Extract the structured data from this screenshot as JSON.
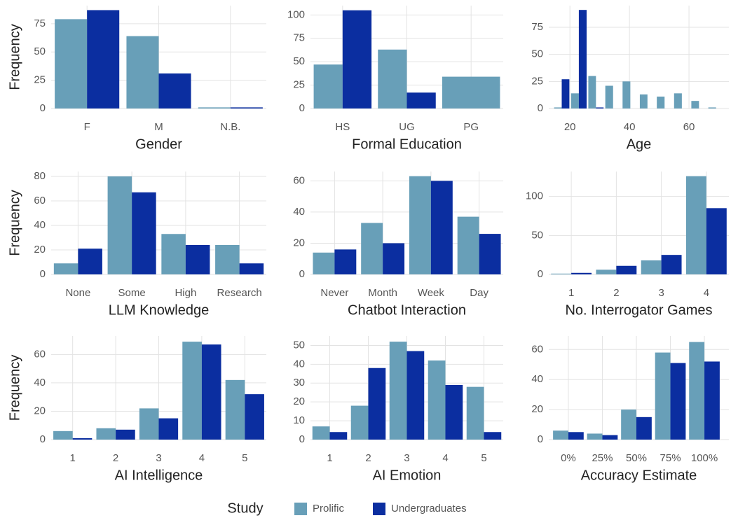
{
  "legend_title": "Study",
  "chart_data": [
    {
      "type": "bar",
      "xlabel": "Gender",
      "ylabel": "Frequency",
      "categories": [
        "F",
        "M",
        "N.B."
      ],
      "series": [
        {
          "name": "Prolific",
          "color": "#689fb8",
          "values": [
            79,
            64,
            1
          ]
        },
        {
          "name": "Undergraduates",
          "color": "#0b2ea0",
          "values": [
            87,
            31,
            1
          ]
        }
      ],
      "ylim": [
        0,
        91
      ],
      "yticks": [
        0,
        25,
        50,
        75
      ],
      "grid": true
    },
    {
      "type": "bar",
      "xlabel": "Formal Education",
      "categories": [
        "HS",
        "UG",
        "PG"
      ],
      "series": [
        {
          "name": "Prolific",
          "color": "#689fb8",
          "values": [
            47,
            63,
            34
          ]
        },
        {
          "name": "Undergraduates",
          "color": "#0b2ea0",
          "values": [
            105,
            17,
            null
          ]
        }
      ],
      "ylim": [
        0,
        110
      ],
      "yticks": [
        0,
        25,
        50,
        75,
        100
      ],
      "grid": true
    },
    {
      "type": "histogram",
      "xlabel": "Age",
      "bins": [
        14.4,
        20.1,
        25.9,
        31.6,
        37.4,
        43.2,
        48.9,
        54.7,
        60.5,
        66.2,
        72.0
      ],
      "series": [
        {
          "name": "Prolific",
          "color": "#689fb8",
          "values": [
            1,
            14,
            30,
            21,
            25,
            13,
            11,
            14,
            7,
            1
          ]
        },
        {
          "name": "Undergraduates",
          "color": "#0b2ea0",
          "values": [
            27,
            91,
            1,
            0,
            0,
            0,
            0,
            0,
            0,
            0
          ]
        }
      ],
      "xlim": [
        12.9,
        73.4
      ],
      "xticks": [
        20,
        40,
        60
      ],
      "ylim": [
        0,
        95
      ],
      "yticks": [
        0,
        25,
        50,
        75
      ],
      "grid": true
    },
    {
      "type": "bar",
      "xlabel": "LLM Knowledge",
      "ylabel": "Frequency",
      "categories": [
        "None",
        "Some",
        "High",
        "Research"
      ],
      "series": [
        {
          "name": "Prolific",
          "color": "#689fb8",
          "values": [
            9,
            80,
            33,
            24
          ]
        },
        {
          "name": "Undergraduates",
          "color": "#0b2ea0",
          "values": [
            21,
            67,
            24,
            9
          ]
        }
      ],
      "ylim": [
        0,
        84
      ],
      "yticks": [
        0,
        20,
        40,
        60,
        80
      ],
      "grid": true
    },
    {
      "type": "bar",
      "xlabel": "Chatbot Interaction",
      "categories": [
        "Never",
        "Month",
        "Week",
        "Day"
      ],
      "series": [
        {
          "name": "Prolific",
          "color": "#689fb8",
          "values": [
            14,
            33,
            63,
            37
          ]
        },
        {
          "name": "Undergraduates",
          "color": "#0b2ea0",
          "values": [
            16,
            20,
            60,
            26
          ]
        }
      ],
      "ylim": [
        0,
        66
      ],
      "yticks": [
        0,
        20,
        40,
        60
      ],
      "grid": true
    },
    {
      "type": "bar",
      "xlabel": "No. Interrogator Games",
      "categories": [
        "1",
        "2",
        "3",
        "4"
      ],
      "series": [
        {
          "name": "Prolific",
          "color": "#689fb8",
          "values": [
            1,
            6,
            18,
            126
          ]
        },
        {
          "name": "Undergraduates",
          "color": "#0b2ea0",
          "values": [
            2,
            11,
            25,
            85
          ]
        }
      ],
      "ylim": [
        0,
        132
      ],
      "yticks": [
        0,
        50,
        100
      ],
      "grid": true
    },
    {
      "type": "bar",
      "xlabel": "AI Intelligence",
      "ylabel": "Frequency",
      "categories": [
        "1",
        "2",
        "3",
        "4",
        "5"
      ],
      "series": [
        {
          "name": "Prolific",
          "color": "#689fb8",
          "values": [
            6,
            8,
            22,
            69,
            42
          ]
        },
        {
          "name": "Undergraduates",
          "color": "#0b2ea0",
          "values": [
            1,
            7,
            15,
            67,
            32
          ]
        }
      ],
      "ylim": [
        0,
        73
      ],
      "yticks": [
        0,
        20,
        40,
        60
      ],
      "grid": true
    },
    {
      "type": "bar",
      "xlabel": "AI Emotion",
      "categories": [
        "1",
        "2",
        "3",
        "4",
        "5"
      ],
      "series": [
        {
          "name": "Prolific",
          "color": "#689fb8",
          "values": [
            7,
            18,
            52,
            42,
            28
          ]
        },
        {
          "name": "Undergraduates",
          "color": "#0b2ea0",
          "values": [
            4,
            38,
            47,
            29,
            4
          ]
        }
      ],
      "ylim": [
        0,
        55
      ],
      "yticks": [
        0,
        10,
        20,
        30,
        40,
        50
      ],
      "grid": true
    },
    {
      "type": "histogram",
      "xlabel": "Accuracy Estimate",
      "bins": [
        -12.5,
        12.5,
        37.5,
        62.5,
        87.5,
        112.5
      ],
      "series": [
        {
          "name": "Prolific",
          "color": "#689fb8",
          "values": [
            6,
            4,
            20,
            58,
            65
          ]
        },
        {
          "name": "Undergraduates",
          "color": "#0b2ea0",
          "values": [
            5,
            3,
            15,
            51,
            52
          ]
        }
      ],
      "xlim": [
        -14.4,
        118
      ],
      "xticks": [
        {
          "value": 0,
          "label": "0%"
        },
        {
          "value": 25,
          "label": "25%"
        },
        {
          "value": 50,
          "label": "50%"
        },
        {
          "value": 75,
          "label": "75%"
        },
        {
          "value": 100,
          "label": "100%"
        }
      ],
      "ylim": [
        0,
        69
      ],
      "yticks": [
        0,
        20,
        40,
        60
      ],
      "grid": true
    }
  ]
}
